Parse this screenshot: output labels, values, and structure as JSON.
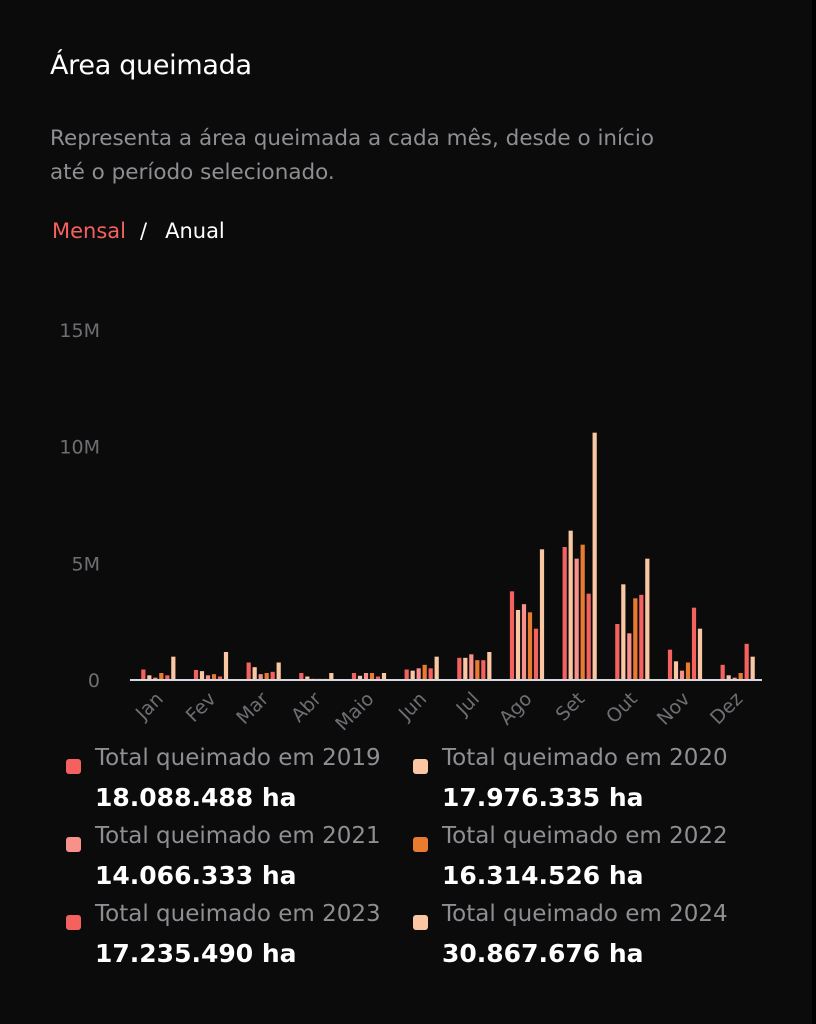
{
  "title": "Área queimada",
  "subtitle": "Representa a área queimada a cada mês, desde o início até o período selecionado.",
  "toggle": {
    "monthly": "Mensal",
    "separator": "/",
    "annual": "Anual",
    "selected": "Mensal"
  },
  "chart_data": {
    "type": "bar",
    "categories": [
      "Jan",
      "Fev",
      "Mar",
      "Abr",
      "Maio",
      "Jun",
      "Jul",
      "Ago",
      "Set",
      "Out",
      "Nov",
      "Dez"
    ],
    "ylim": [
      0,
      15000000
    ],
    "yticks": [
      {
        "value": 0,
        "label": "0"
      },
      {
        "value": 5000000,
        "label": "5M"
      },
      {
        "value": 10000000,
        "label": "10M"
      },
      {
        "value": 15000000,
        "label": "15M"
      }
    ],
    "grid": false,
    "legend": "bottom",
    "series": [
      {
        "name": "Total queimado em 2019",
        "color": "#f4615f",
        "values": [
          450000,
          430000,
          750000,
          300000,
          300000,
          450000,
          950000,
          3800000,
          5700000,
          2400000,
          1300000,
          650000
        ]
      },
      {
        "name": "Total queimado em 2020",
        "color": "#fbc7a3",
        "values": [
          200000,
          380000,
          550000,
          150000,
          180000,
          400000,
          950000,
          3000000,
          6400000,
          4100000,
          800000,
          200000
        ]
      },
      {
        "name": "Total queimado em 2021",
        "color": "#f8918c",
        "values": [
          100000,
          200000,
          250000,
          50000,
          300000,
          500000,
          1100000,
          3250000,
          5200000,
          2000000,
          400000,
          100000
        ]
      },
      {
        "name": "Total queimado em 2022",
        "color": "#e97b30",
        "values": [
          300000,
          250000,
          300000,
          50000,
          300000,
          650000,
          850000,
          2900000,
          5800000,
          3500000,
          750000,
          300000
        ]
      },
      {
        "name": "Total queimado em 2023",
        "color": "#f4615f",
        "values": [
          200000,
          150000,
          350000,
          50000,
          150000,
          500000,
          850000,
          2200000,
          3700000,
          3650000,
          3100000,
          1550000
        ]
      },
      {
        "name": "Total queimado em 2024",
        "color": "#fbc7a3",
        "values": [
          1000000,
          1200000,
          750000,
          300000,
          300000,
          1000000,
          1200000,
          5600000,
          10600000,
          5200000,
          2200000,
          1000000
        ]
      }
    ]
  },
  "legend": {
    "items": [
      {
        "label": "Total queimado em 2019",
        "value": "18.088.488 ha",
        "color": "#f4615f"
      },
      {
        "label": "Total queimado em 2020",
        "value": "17.976.335 ha",
        "color": "#fbc7a3"
      },
      {
        "label": "Total queimado em 2021",
        "value": "14.066.333 ha",
        "color": "#f8918c"
      },
      {
        "label": "Total queimado em 2022",
        "value": "16.314.526 ha",
        "color": "#e97b30"
      },
      {
        "label": "Total queimado em 2023",
        "value": "17.235.490 ha",
        "color": "#f4615f"
      },
      {
        "label": "Total queimado em 2024",
        "value": "30.867.676 ha",
        "color": "#fbc7a3"
      }
    ]
  }
}
